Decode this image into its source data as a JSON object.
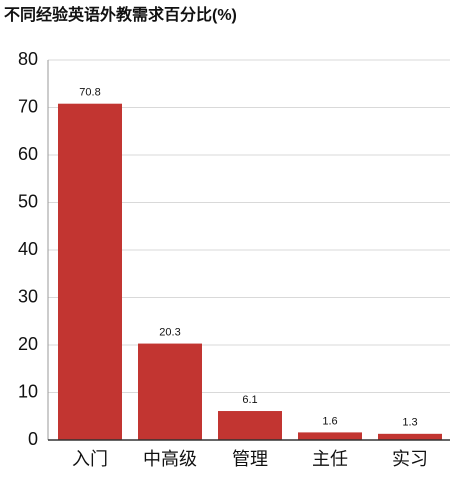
{
  "chart_data": {
    "type": "bar",
    "title": "不同经验英语外教需求百分比(%)",
    "categories": [
      "入门",
      "中高级",
      "管理",
      "主任",
      "实习"
    ],
    "values": [
      70.8,
      20.3,
      6.1,
      1.6,
      1.3
    ],
    "color": "#c23531",
    "ylim": [
      0,
      80
    ],
    "yticks": [
      0,
      10,
      20,
      30,
      40,
      50,
      60,
      70,
      80
    ],
    "grid": true
  }
}
